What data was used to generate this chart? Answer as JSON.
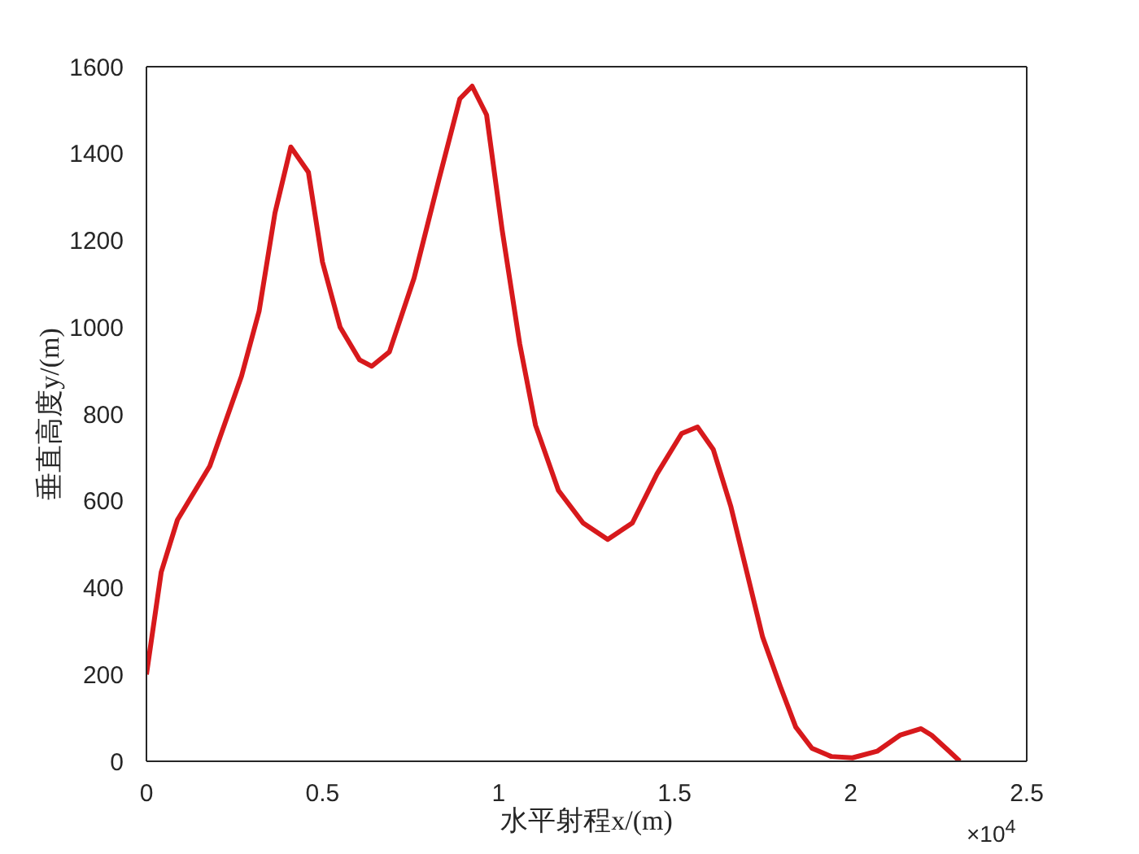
{
  "chart_data": {
    "type": "line",
    "xlabel": "水平射程x/(m)",
    "ylabel": "垂直高度y/(m)",
    "annotations": [
      "×10$^{4}$"
    ],
    "x": [
      0,
      0.042,
      0.088,
      0.18,
      0.27,
      0.32,
      0.365,
      0.41,
      0.46,
      0.5,
      0.55,
      0.605,
      0.64,
      0.69,
      0.76,
      0.83,
      0.89,
      0.925,
      0.966,
      1.01,
      1.06,
      1.105,
      1.17,
      1.24,
      1.31,
      1.38,
      1.45,
      1.52,
      1.565,
      1.61,
      1.66,
      1.705,
      1.75,
      1.8,
      1.844,
      1.89,
      1.945,
      2.005,
      2.075,
      2.14,
      2.2,
      2.23,
      2.28,
      2.31
    ],
    "series": [
      {
        "color": "#d7191c",
        "values": [
          200,
          436,
          556,
          680,
          887,
          1037,
          1263,
          1415,
          1357,
          1150,
          1000,
          925,
          910,
          943,
          1113,
          1338,
          1526,
          1555,
          1489,
          1225,
          962,
          774,
          624,
          549,
          511,
          549,
          662,
          755,
          770,
          718,
          586,
          436,
          286,
          173,
          79,
          30,
          11,
          8,
          23,
          60,
          75,
          60,
          23,
          0
        ]
      }
    ],
    "xlim": [
      0,
      2.5
    ],
    "xticks": [
      0,
      0.5,
      1,
      1.5,
      2,
      2.5
    ],
    "ylim": [
      0,
      1600
    ],
    "yticks": [
      0,
      200,
      400,
      600,
      800,
      1000,
      1200,
      1400,
      1600
    ],
    "grid": false,
    "legend": false,
    "marker": "none",
    "line_style": "solid"
  }
}
